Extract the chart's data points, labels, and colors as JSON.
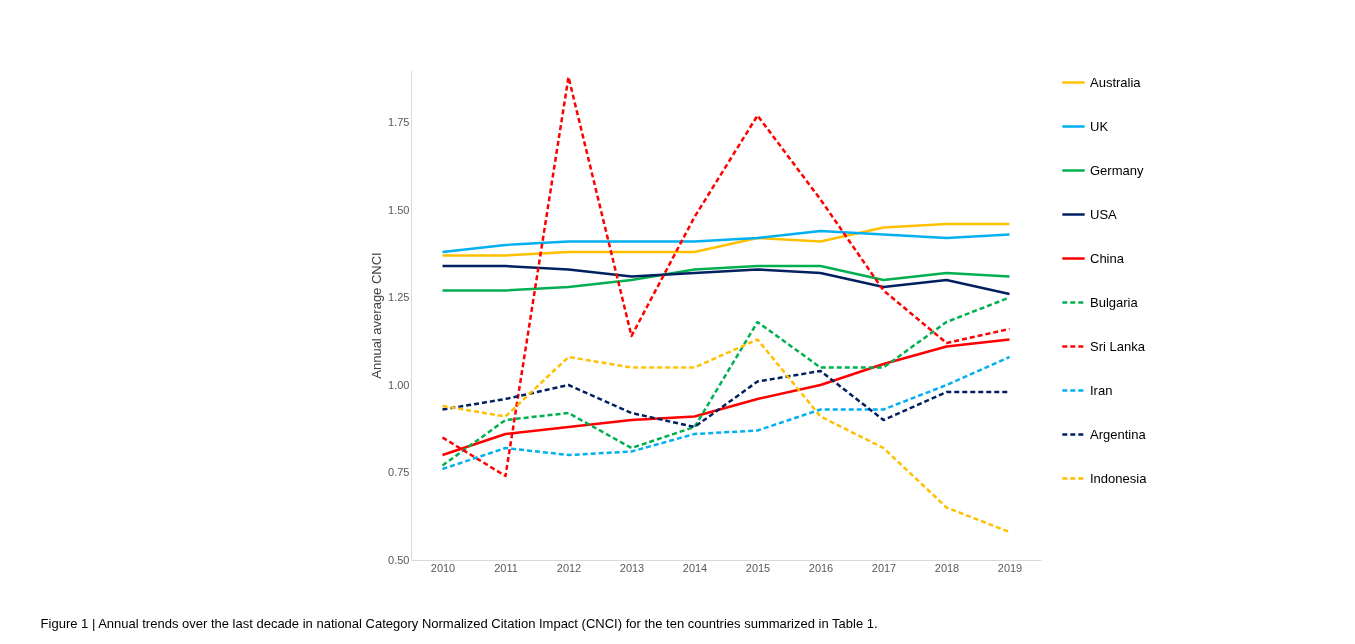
{
  "chart_data": {
    "type": "line",
    "ylabel": "Annual average CNCI",
    "categories": [
      "2010",
      "2011",
      "2012",
      "2013",
      "2014",
      "2015",
      "2016",
      "2017",
      "2018",
      "2019"
    ],
    "ylim": [
      0.5,
      1.9
    ],
    "yticks": [
      {
        "value": 0.5,
        "label": "0.50"
      },
      {
        "value": 0.75,
        "label": "0.75"
      },
      {
        "value": 1.0,
        "label": "1.00"
      },
      {
        "value": 1.25,
        "label": "1.25"
      },
      {
        "value": 1.5,
        "label": "1.50"
      },
      {
        "value": 1.75,
        "label": "1.75"
      }
    ],
    "grid": false,
    "legend": "right",
    "series": [
      {
        "name": "Australia",
        "color": "#ffc000",
        "line_style": "solid",
        "values": [
          1.37,
          1.37,
          1.38,
          1.38,
          1.38,
          1.42,
          1.41,
          1.45,
          1.46,
          1.46
        ]
      },
      {
        "name": "UK",
        "color": "#00b0f0",
        "line_style": "solid",
        "values": [
          1.38,
          1.4,
          1.41,
          1.41,
          1.41,
          1.42,
          1.44,
          1.43,
          1.42,
          1.43
        ]
      },
      {
        "name": "Germany",
        "color": "#00b050",
        "line_style": "solid",
        "values": [
          1.27,
          1.27,
          1.28,
          1.3,
          1.33,
          1.34,
          1.34,
          1.3,
          1.32,
          1.31
        ]
      },
      {
        "name": "USA",
        "color": "#002060",
        "line_style": "solid",
        "values": [
          1.34,
          1.34,
          1.33,
          1.31,
          1.32,
          1.33,
          1.32,
          1.28,
          1.3,
          1.26
        ]
      },
      {
        "name": "China",
        "color": "#ff0000",
        "line_style": "solid",
        "values": [
          0.8,
          0.86,
          0.88,
          0.9,
          0.91,
          0.96,
          1.0,
          1.06,
          1.11,
          1.13
        ]
      },
      {
        "name": "Bulgaria",
        "color": "#00b050",
        "line_style": "dashed",
        "values": [
          0.77,
          0.9,
          0.92,
          0.82,
          0.88,
          1.18,
          1.05,
          1.05,
          1.18,
          1.25
        ]
      },
      {
        "name": "Sri Lanka",
        "color": "#ff0000",
        "line_style": "dashed",
        "values": [
          0.85,
          0.74,
          1.88,
          1.14,
          1.48,
          1.77,
          1.53,
          1.27,
          1.12,
          1.16
        ]
      },
      {
        "name": "Iran",
        "color": "#00b0f0",
        "line_style": "dashed",
        "values": [
          0.76,
          0.82,
          0.8,
          0.81,
          0.86,
          0.87,
          0.93,
          0.93,
          1.0,
          1.08
        ]
      },
      {
        "name": "Argentina",
        "color": "#002060",
        "line_style": "dashed",
        "values": [
          0.93,
          0.96,
          1.0,
          0.92,
          0.88,
          1.01,
          1.04,
          0.9,
          0.98,
          0.98
        ]
      },
      {
        "name": "Indonesia",
        "color": "#ffc000",
        "line_style": "dashed",
        "values": [
          0.94,
          0.91,
          1.08,
          1.05,
          1.05,
          1.13,
          0.91,
          0.82,
          0.65,
          0.58
        ]
      }
    ],
    "annotations": [
      "Figure 1 | Annual trends over the last decade in national Category Normalized Citation Impact (CNCI) for the ten countries summarized in Table 1."
    ]
  }
}
